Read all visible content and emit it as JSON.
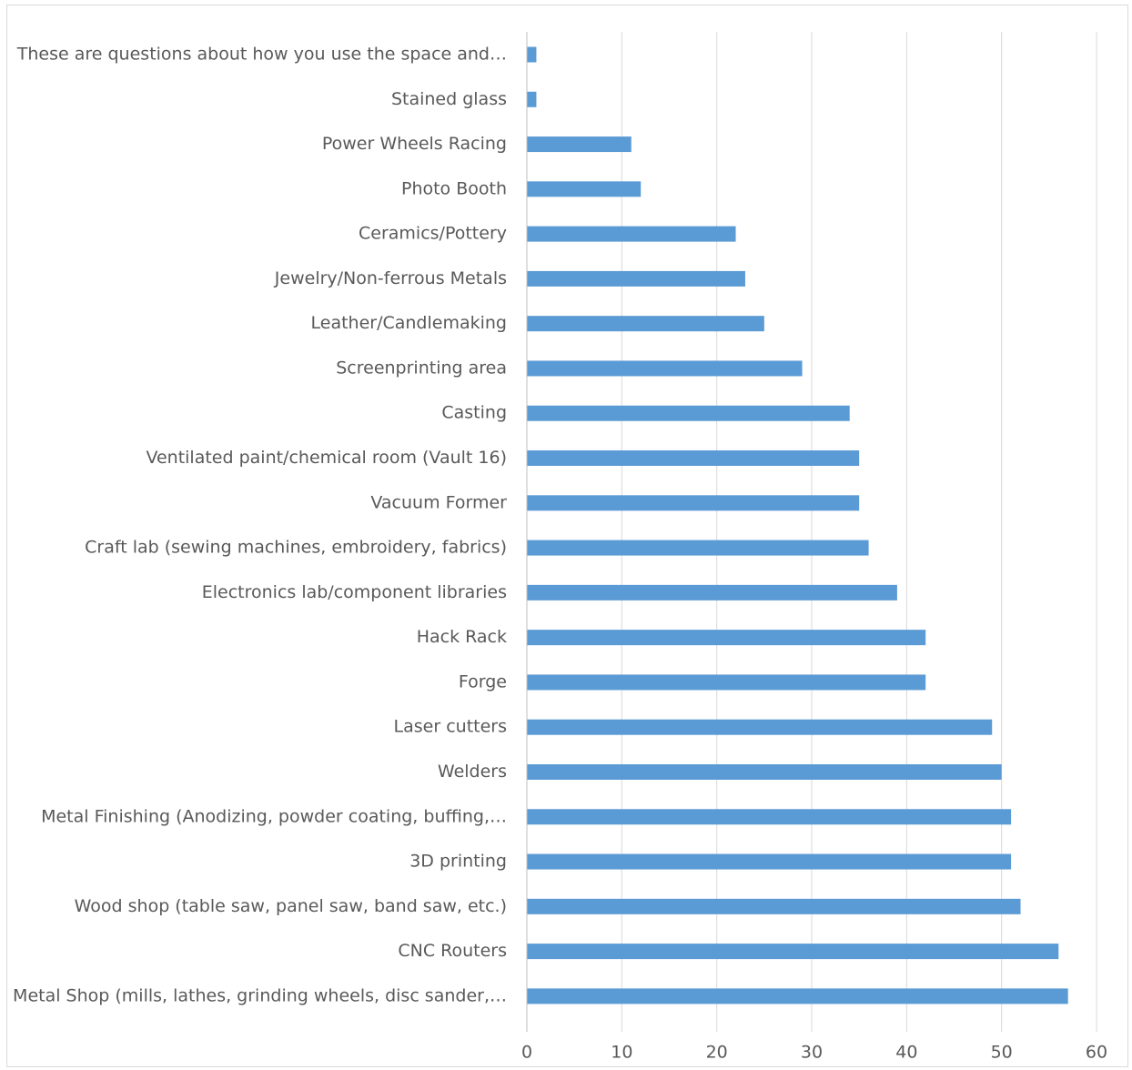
{
  "chart_data": {
    "type": "bar",
    "orientation": "horizontal",
    "categories": [
      "These are questions about how you use the space and…",
      "Stained glass",
      "Power Wheels Racing",
      "Photo Booth",
      "Ceramics/Pottery",
      "Jewelry/Non-ferrous Metals",
      "Leather/Candlemaking",
      "Screenprinting area",
      "Casting",
      "Ventilated paint/chemical room (Vault 16)",
      "Vacuum Former",
      "Craft lab (sewing machines, embroidery, fabrics)",
      "Electronics lab/component libraries",
      "Hack Rack",
      "Forge",
      "Laser cutters",
      "Welders",
      "Metal Finishing (Anodizing, powder coating, buffing,…",
      "3D printing",
      "Wood shop (table saw, panel saw, band saw, etc.)",
      "CNC Routers",
      "Metal Shop (mills, lathes, grinding wheels, disc sander,…"
    ],
    "values": [
      1,
      1,
      11,
      12,
      22,
      23,
      25,
      29,
      34,
      35,
      35,
      36,
      39,
      42,
      42,
      49,
      50,
      51,
      51,
      52,
      56,
      57
    ],
    "xlim": [
      0,
      60
    ],
    "xticks": [
      "0",
      "10",
      "20",
      "30",
      "40",
      "50",
      "60"
    ],
    "title": "",
    "xlabel": "",
    "ylabel": "",
    "grid": "vertical gridlines on",
    "legend": "none",
    "bar_color": "#5b9bd5",
    "grid_color": "#d9d9d9",
    "axis_color": "#bfbfbf",
    "text_color": "#595959"
  }
}
